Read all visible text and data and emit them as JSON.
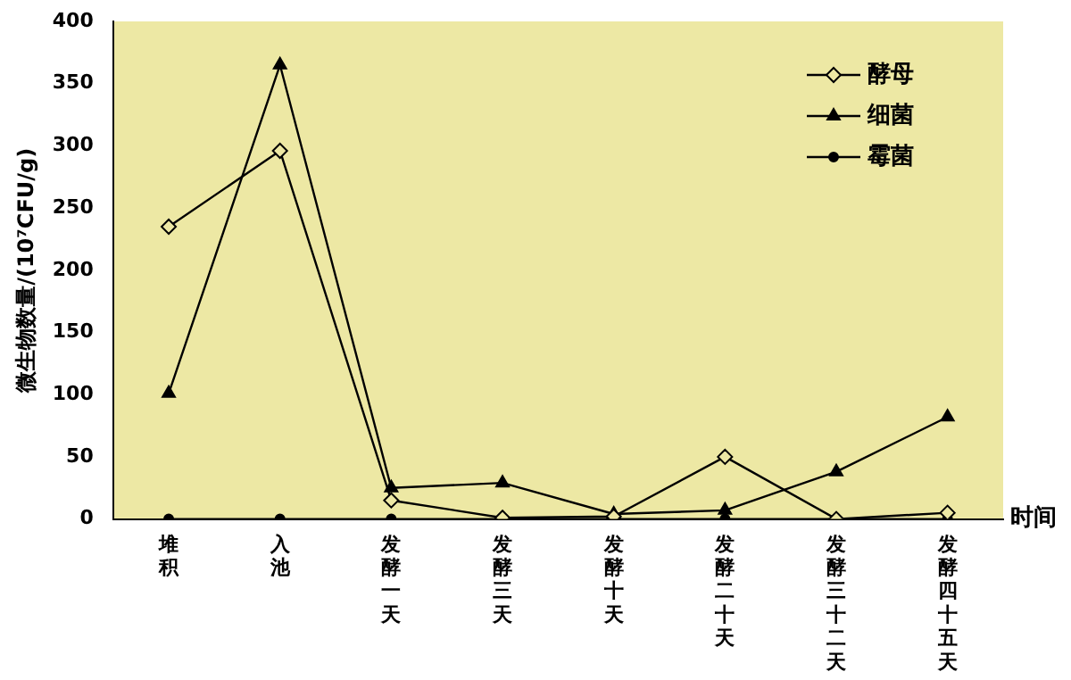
{
  "chart_data": {
    "type": "line",
    "ylabel": "微生物数量/(10⁷CFU/g)",
    "xlabel": "时间",
    "categories": [
      "堆积",
      "入池",
      "发酵一天",
      "发酵三天",
      "发酵十天",
      "发酵二十天",
      "发酵三十二天",
      "发酵四十五天"
    ],
    "series": [
      {
        "name": "酵母",
        "color": "#000000",
        "marker": "diamond",
        "values": [
          235,
          296,
          15,
          1,
          2,
          50,
          0,
          5
        ]
      },
      {
        "name": "细菌",
        "color": "#000000",
        "marker": "triangle",
        "values": [
          101,
          365,
          25,
          29,
          4,
          7,
          38,
          82
        ]
      },
      {
        "name": "霉菌",
        "color": "#000000",
        "marker": "circle",
        "values": [
          0,
          0,
          0,
          0,
          0,
          0,
          0,
          0
        ]
      }
    ],
    "ylim": [
      0,
      400
    ],
    "yticks": [
      0,
      50,
      100,
      150,
      200,
      250,
      300,
      350,
      400
    ],
    "grid": false,
    "legend": "top right",
    "line_style": "solid"
  }
}
